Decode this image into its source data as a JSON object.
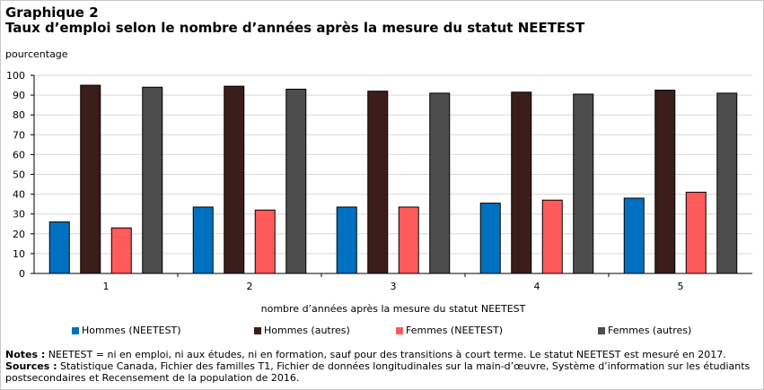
{
  "figure": {
    "label": "Graphique 2",
    "title": "Taux d’emploi selon le nombre d’années après la mesure du statut NEETEST",
    "notes_label": "Notes :",
    "notes_text": " NEETEST = ni en emploi, ni aux études, ni en formation, sauf pour des transitions à court terme. Le statut NEETEST est mesuré en 2017.",
    "sources_label": "Sources :",
    "sources_text": " Statistique Canada, Fichier des familles T1, Fichier de données longitudinales sur la main-d’œuvre, Système d’information sur les étudiants postsecondaires et Recensement de la population de 2016."
  },
  "chart_data": {
    "type": "bar",
    "title": "Taux d’emploi selon le nombre d’années après la mesure du statut NEETEST",
    "ylabel": "pourcentage",
    "xlabel": "nombre d’années après la mesure du statut NEETEST",
    "categories": [
      "1",
      "2",
      "3",
      "4",
      "5"
    ],
    "yticks": [
      "0",
      "10",
      "20",
      "30",
      "40",
      "50",
      "60",
      "70",
      "80",
      "90",
      "100"
    ],
    "ylim": [
      0,
      100
    ],
    "grid": true,
    "legend_position": "bottom",
    "series": [
      {
        "name": "Hommes (NEETEST)",
        "color": "#0070c0",
        "values": [
          26,
          33.5,
          33.5,
          35.5,
          38
        ]
      },
      {
        "name": "Hommes (autres)",
        "color": "#3b1d1b",
        "values": [
          95,
          94.5,
          92,
          91.5,
          92.5
        ]
      },
      {
        "name": "Femmes (NEETEST)",
        "color": "#ff5b5b",
        "values": [
          23,
          32,
          33.5,
          37,
          41
        ]
      },
      {
        "name": "Femmes (autres)",
        "color": "#4d4d4d",
        "values": [
          94,
          93,
          91,
          90.5,
          91
        ]
      }
    ]
  }
}
